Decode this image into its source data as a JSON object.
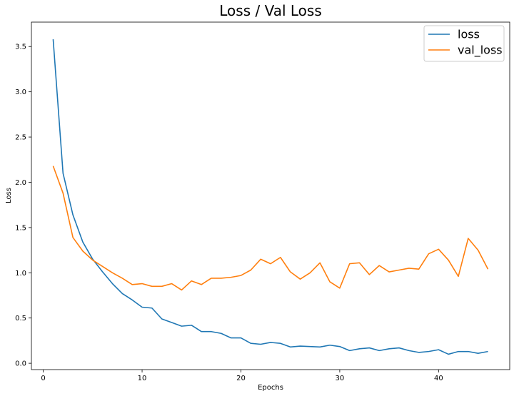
{
  "chart_data": {
    "type": "line",
    "title": "Loss / Val Loss",
    "xlabel": "Epochs",
    "ylabel": "Loss",
    "xlim": [
      -1.2,
      47.2
    ],
    "ylim": [
      -0.07,
      3.77
    ],
    "xticks": [
      0,
      10,
      20,
      30,
      40
    ],
    "yticks": [
      0.0,
      0.5,
      1.0,
      1.5,
      2.0,
      2.5,
      3.0,
      3.5
    ],
    "ytick_labels": [
      "0.0",
      "0.5",
      "1.0",
      "1.5",
      "2.0",
      "2.5",
      "3.0",
      "3.5"
    ],
    "grid": false,
    "legend_position": "top-right",
    "x": [
      1,
      2,
      3,
      4,
      5,
      6,
      7,
      8,
      9,
      10,
      11,
      12,
      13,
      14,
      15,
      16,
      17,
      18,
      19,
      20,
      21,
      22,
      23,
      24,
      25,
      26,
      27,
      28,
      29,
      30,
      31,
      32,
      33,
      34,
      35,
      36,
      37,
      38,
      39,
      40,
      41,
      42,
      43,
      44,
      45
    ],
    "series": [
      {
        "name": "loss",
        "color": "#1f77b4",
        "values": [
          3.58,
          2.1,
          1.64,
          1.34,
          1.15,
          1.01,
          0.88,
          0.77,
          0.7,
          0.62,
          0.61,
          0.49,
          0.45,
          0.41,
          0.42,
          0.35,
          0.35,
          0.33,
          0.28,
          0.28,
          0.22,
          0.21,
          0.23,
          0.22,
          0.18,
          0.19,
          0.185,
          0.18,
          0.2,
          0.185,
          0.14,
          0.16,
          0.17,
          0.14,
          0.16,
          0.17,
          0.14,
          0.12,
          0.13,
          0.15,
          0.1,
          0.13,
          0.13,
          0.11,
          0.13
        ]
      },
      {
        "name": "val_loss",
        "color": "#ff7f0e",
        "values": [
          2.18,
          1.88,
          1.39,
          1.24,
          1.14,
          1.07,
          1.0,
          0.94,
          0.87,
          0.88,
          0.85,
          0.85,
          0.88,
          0.81,
          0.91,
          0.87,
          0.94,
          0.94,
          0.95,
          0.97,
          1.03,
          1.15,
          1.1,
          1.17,
          1.01,
          0.93,
          1.0,
          1.11,
          0.9,
          0.83,
          1.1,
          1.11,
          0.98,
          1.08,
          1.01,
          1.03,
          1.05,
          1.04,
          1.21,
          1.26,
          1.14,
          0.96,
          1.38,
          1.25,
          1.04
        ]
      }
    ]
  }
}
